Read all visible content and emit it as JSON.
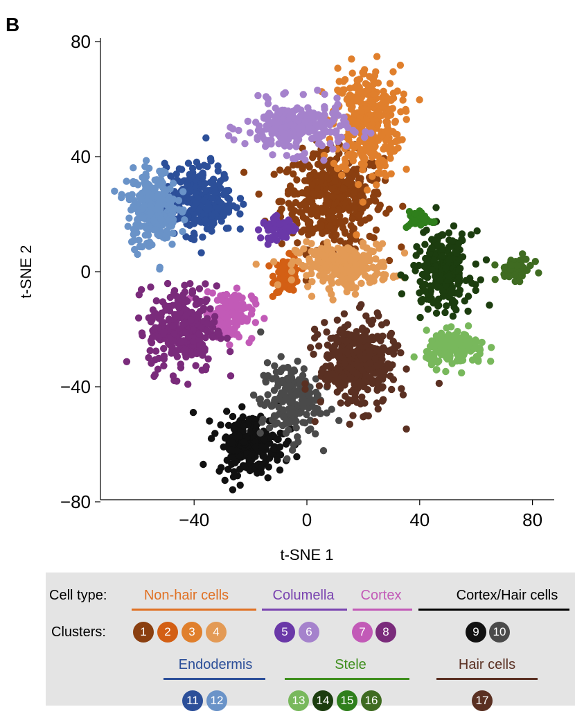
{
  "panel_label": "B",
  "chart_data": {
    "type": "scatter",
    "title": "",
    "xlabel": "t-SNE 1",
    "ylabel": "t-SNE 2",
    "xlim": [
      -72,
      87
    ],
    "ylim": [
      -80,
      82
    ],
    "xticks": [
      -40,
      0,
      40,
      80
    ],
    "yticks": [
      80,
      40,
      0,
      -40,
      -80
    ],
    "xtick_labels": [
      "−40",
      "0",
      "40",
      "80"
    ],
    "ytick_labels": [
      "80",
      "40",
      "0",
      "−40",
      "−80"
    ],
    "grid": false,
    "series": [
      {
        "name": "1",
        "color": "#8a3f10",
        "center": [
          9,
          25
        ],
        "spread": [
          12,
          11
        ],
        "n": 420
      },
      {
        "name": "2",
        "color": "#d35f14",
        "center": [
          -7,
          -1
        ],
        "spread": [
          3,
          4
        ],
        "n": 90
      },
      {
        "name": "3",
        "color": "#e07f2c",
        "center": [
          21,
          52
        ],
        "spread": [
          8,
          13
        ],
        "n": 320
      },
      {
        "name": "4",
        "color": "#e39a55",
        "center": [
          13,
          2
        ],
        "spread": [
          11,
          5
        ],
        "n": 260
      },
      {
        "name": "5",
        "color": "#6a38a8",
        "center": [
          -10,
          15
        ],
        "spread": [
          4,
          2.5
        ],
        "n": 60
      },
      {
        "name": "6",
        "color": "#a582cc",
        "center": [
          -4,
          50
        ],
        "spread": [
          12,
          6
        ],
        "n": 240
      },
      {
        "name": "7",
        "color": "#c25ab7",
        "center": [
          -28,
          -15
        ],
        "spread": [
          6,
          6
        ],
        "n": 130
      },
      {
        "name": "8",
        "color": "#7a2b7b",
        "center": [
          -44,
          -20
        ],
        "spread": [
          8,
          10
        ],
        "n": 280
      },
      {
        "name": "9",
        "color": "#111111",
        "center": [
          -20,
          -60
        ],
        "spread": [
          8,
          7
        ],
        "n": 220
      },
      {
        "name": "10",
        "color": "#4a4a4a",
        "center": [
          -6,
          -45
        ],
        "spread": [
          7,
          9
        ],
        "n": 180
      },
      {
        "name": "11",
        "color": "#2c4f99",
        "center": [
          -38,
          25
        ],
        "spread": [
          8,
          8
        ],
        "n": 280
      },
      {
        "name": "12",
        "color": "#6a93c8",
        "center": [
          -55,
          22
        ],
        "spread": [
          6,
          9
        ],
        "n": 230
      },
      {
        "name": "13",
        "color": "#78b85c",
        "center": [
          53,
          -27
        ],
        "spread": [
          7,
          4
        ],
        "n": 140
      },
      {
        "name": "14",
        "color": "#1c3d0f",
        "center": [
          48,
          0
        ],
        "spread": [
          7,
          9
        ],
        "n": 230
      },
      {
        "name": "15",
        "color": "#2f7f1c",
        "center": [
          40,
          18
        ],
        "spread": [
          3,
          2
        ],
        "n": 35
      },
      {
        "name": "16",
        "color": "#3f6b21",
        "center": [
          74,
          1
        ],
        "spread": [
          4,
          2.5
        ],
        "n": 60
      },
      {
        "name": "17",
        "color": "#5a3022",
        "center": [
          18,
          -32
        ],
        "spread": [
          9,
          10
        ],
        "n": 360
      }
    ]
  },
  "legend": {
    "cell_type_label": "Cell type:",
    "clusters_label": "Clusters:",
    "categories": [
      {
        "name": "Non-hair cells",
        "color": "#e07124",
        "clusters": [
          "1",
          "2",
          "3",
          "4"
        ]
      },
      {
        "name": "Columella",
        "color": "#7a44b0",
        "clusters": [
          "5",
          "6"
        ]
      },
      {
        "name": "Cortex",
        "color": "#c25ab7",
        "clusters": [
          "7",
          "8"
        ]
      },
      {
        "name": "Cortex/Hair cells",
        "color": "#000000",
        "clusters": [
          "9",
          "10"
        ]
      },
      {
        "name": "Endodermis",
        "color": "#2c4f99",
        "clusters": [
          "11",
          "12"
        ]
      },
      {
        "name": "Stele",
        "color": "#3f8f1e",
        "clusters": [
          "13",
          "14",
          "15",
          "16"
        ]
      },
      {
        "name": "Hair cells",
        "color": "#5a3022",
        "clusters": [
          "17"
        ]
      }
    ]
  }
}
